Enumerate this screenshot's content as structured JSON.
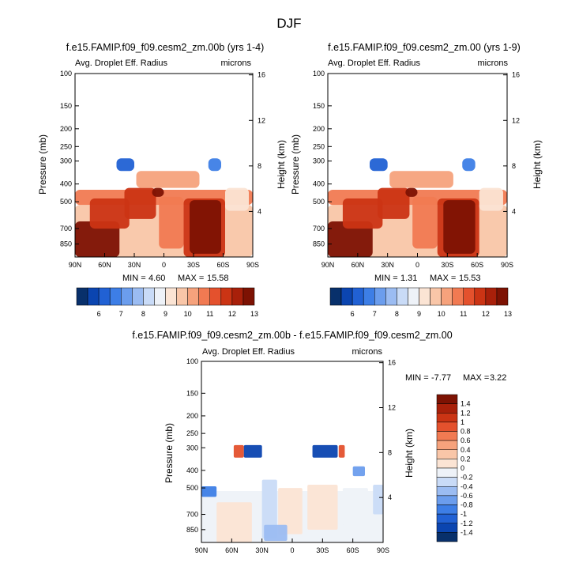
{
  "figure_title": "DJF",
  "chart_data": [
    {
      "type": "heatmap",
      "title": "f.e15.FAMIP.f09_f09.cesm2_zm.00b (yrs 1-4)",
      "variable_label": "Avg. Droplet Eff. Radius",
      "units": "microns",
      "ylabel_left": "Pressure (mb)",
      "ylabel_right": "Height (km)",
      "pressure_ticks": [
        "100",
        "150",
        "200",
        "250",
        "300",
        "400",
        "500",
        "700",
        "850"
      ],
      "pressure_values": [
        100,
        150,
        200,
        250,
        300,
        400,
        500,
        700,
        850
      ],
      "height_ticks": [
        "16",
        "12",
        "8",
        "4"
      ],
      "x_ticks": [
        "90N",
        "60N",
        "30N",
        "0",
        "30S",
        "60S",
        "90S"
      ],
      "ylim": [
        1000,
        100
      ],
      "xlim": [
        90,
        -90
      ],
      "min_label": "MIN =",
      "min_value": "4.60",
      "max_label": "MAX =",
      "max_value": "15.58",
      "colorbar_labels": [
        "6",
        "7",
        "8",
        "9",
        "10",
        "11",
        "12",
        "13"
      ],
      "fields": [
        {
          "lat": [
            90,
            -90
          ],
          "p": [
            1000,
            520
          ],
          "value": 9.6
        },
        {
          "lat": [
            90,
            -90
          ],
          "p": [
            520,
            430
          ],
          "value": 10.6
        },
        {
          "lat": [
            90,
            45
          ],
          "p": [
            1000,
            640
          ],
          "value": 13.4
        },
        {
          "lat": [
            75,
            35
          ],
          "p": [
            700,
            480
          ],
          "value": 11.8
        },
        {
          "lat": [
            40,
            8
          ],
          "p": [
            620,
            420
          ],
          "value": 11.6
        },
        {
          "lat": [
            5,
            -20
          ],
          "p": [
            900,
            470
          ],
          "value": 10.8
        },
        {
          "lat": [
            12,
            0
          ],
          "p": [
            470,
            420
          ],
          "value": 12.8
        },
        {
          "lat": [
            -20,
            -62
          ],
          "p": [
            1000,
            480
          ],
          "value": 11.8
        },
        {
          "lat": [
            -26,
            -58
          ],
          "p": [
            960,
            490
          ],
          "value": 13.6
        },
        {
          "lat": [
            28,
            -36
          ],
          "p": [
            420,
            340
          ],
          "value": 10.3
        },
        {
          "lat": [
            48,
            30
          ],
          "p": [
            340,
            290
          ],
          "value": 6.4
        },
        {
          "lat": [
            -45,
            -58
          ],
          "p": [
            340,
            290
          ],
          "value": 6.8
        },
        {
          "lat": [
            -62,
            -86
          ],
          "p": [
            560,
            420
          ],
          "value": 9.3
        }
      ]
    },
    {
      "type": "heatmap",
      "title": "f.e15.FAMIP.f09_f09.cesm2_zm.00 (yrs 1-9)",
      "variable_label": "Avg. Droplet Eff. Radius",
      "units": "microns",
      "ylabel_left": "Pressure (mb)",
      "ylabel_right": "Height (km)",
      "pressure_ticks": [
        "100",
        "150",
        "200",
        "250",
        "300",
        "400",
        "500",
        "700",
        "850"
      ],
      "pressure_values": [
        100,
        150,
        200,
        250,
        300,
        400,
        500,
        700,
        850
      ],
      "height_ticks": [
        "16",
        "12",
        "8",
        "4"
      ],
      "x_ticks": [
        "90N",
        "60N",
        "30N",
        "0",
        "30S",
        "60S",
        "90S"
      ],
      "ylim": [
        1000,
        100
      ],
      "xlim": [
        90,
        -90
      ],
      "min_label": "MIN =",
      "min_value": "1.31",
      "max_label": "MAX =",
      "max_value": "15.53",
      "colorbar_labels": [
        "6",
        "7",
        "8",
        "9",
        "10",
        "11",
        "12",
        "13"
      ],
      "fields": [
        {
          "lat": [
            90,
            -90
          ],
          "p": [
            1000,
            520
          ],
          "value": 9.6
        },
        {
          "lat": [
            90,
            -90
          ],
          "p": [
            520,
            430
          ],
          "value": 10.6
        },
        {
          "lat": [
            90,
            45
          ],
          "p": [
            1000,
            640
          ],
          "value": 13.4
        },
        {
          "lat": [
            75,
            35
          ],
          "p": [
            700,
            480
          ],
          "value": 11.8
        },
        {
          "lat": [
            40,
            8
          ],
          "p": [
            620,
            420
          ],
          "value": 11.6
        },
        {
          "lat": [
            5,
            -20
          ],
          "p": [
            900,
            470
          ],
          "value": 10.8
        },
        {
          "lat": [
            12,
            0
          ],
          "p": [
            470,
            420
          ],
          "value": 12.8
        },
        {
          "lat": [
            -20,
            -62
          ],
          "p": [
            1000,
            480
          ],
          "value": 11.8
        },
        {
          "lat": [
            -26,
            -58
          ],
          "p": [
            960,
            490
          ],
          "value": 13.6
        },
        {
          "lat": [
            28,
            -36
          ],
          "p": [
            420,
            340
          ],
          "value": 10.3
        },
        {
          "lat": [
            48,
            30
          ],
          "p": [
            340,
            290
          ],
          "value": 6.4
        },
        {
          "lat": [
            -45,
            -58
          ],
          "p": [
            340,
            290
          ],
          "value": 6.8
        },
        {
          "lat": [
            -62,
            -86
          ],
          "p": [
            560,
            420
          ],
          "value": 9.3
        }
      ]
    },
    {
      "type": "heatmap",
      "title": "f.e15.FAMIP.f09_f09.cesm2_zm.00b - f.e15.FAMIP.f09_f09.cesm2_zm.00",
      "variable_label": "Avg. Droplet Eff. Radius",
      "units": "microns",
      "ylabel_left": "Pressure (mb)",
      "ylabel_right": "Height (km)",
      "pressure_ticks": [
        "100",
        "150",
        "200",
        "250",
        "300",
        "400",
        "500",
        "700",
        "850"
      ],
      "pressure_values": [
        100,
        150,
        200,
        250,
        300,
        400,
        500,
        700,
        850
      ],
      "height_ticks": [
        "16",
        "12",
        "8",
        "4"
      ],
      "x_ticks": [
        "90N",
        "60N",
        "30N",
        "0",
        "30S",
        "60S",
        "90S"
      ],
      "ylim": [
        1000,
        100
      ],
      "xlim": [
        90,
        -90
      ],
      "min_label": "MIN =",
      "min_value": "-7.77",
      "max_label": "MAX =",
      "max_value": "3.22",
      "colorbar_labels": [
        "1.4",
        "1.2",
        "1",
        "0.8",
        "0.6",
        "0.4",
        "0.2",
        "0",
        "-0.2",
        "-0.4",
        "-0.6",
        "-0.8",
        "-1",
        "-1.2",
        "-1.4"
      ],
      "fields": [
        {
          "lat": [
            90,
            -90
          ],
          "p": [
            1000,
            520
          ],
          "value": -0.1
        },
        {
          "lat": [
            75,
            40
          ],
          "p": [
            1000,
            600
          ],
          "value": 0.15
        },
        {
          "lat": [
            30,
            15
          ],
          "p": [
            950,
            450
          ],
          "value": -0.35
        },
        {
          "lat": [
            14,
            -10
          ],
          "p": [
            900,
            500
          ],
          "value": 0.1
        },
        {
          "lat": [
            -15,
            -45
          ],
          "p": [
            850,
            480
          ],
          "value": 0.15
        },
        {
          "lat": [
            -50,
            -75
          ],
          "p": [
            800,
            500
          ],
          "value": -0.15
        },
        {
          "lat": [
            28,
            5
          ],
          "p": [
            980,
            800
          ],
          "value": -0.6
        },
        {
          "lat": [
            -80,
            -90
          ],
          "p": [
            700,
            480
          ],
          "value": -0.3
        },
        {
          "lat": [
            90,
            75
          ],
          "p": [
            560,
            490
          ],
          "value": -1.0
        },
        {
          "lat": [
            48,
            30
          ],
          "p": [
            340,
            290
          ],
          "value": -1.3
        },
        {
          "lat": [
            -20,
            -45
          ],
          "p": [
            340,
            290
          ],
          "value": -1.3
        },
        {
          "lat": [
            58,
            48
          ],
          "p": [
            340,
            290
          ],
          "value": 0.8
        },
        {
          "lat": [
            -46,
            -52
          ],
          "p": [
            340,
            290
          ],
          "value": 0.8
        },
        {
          "lat": [
            -60,
            -72
          ],
          "p": [
            430,
            380
          ],
          "value": -0.8
        }
      ]
    }
  ]
}
